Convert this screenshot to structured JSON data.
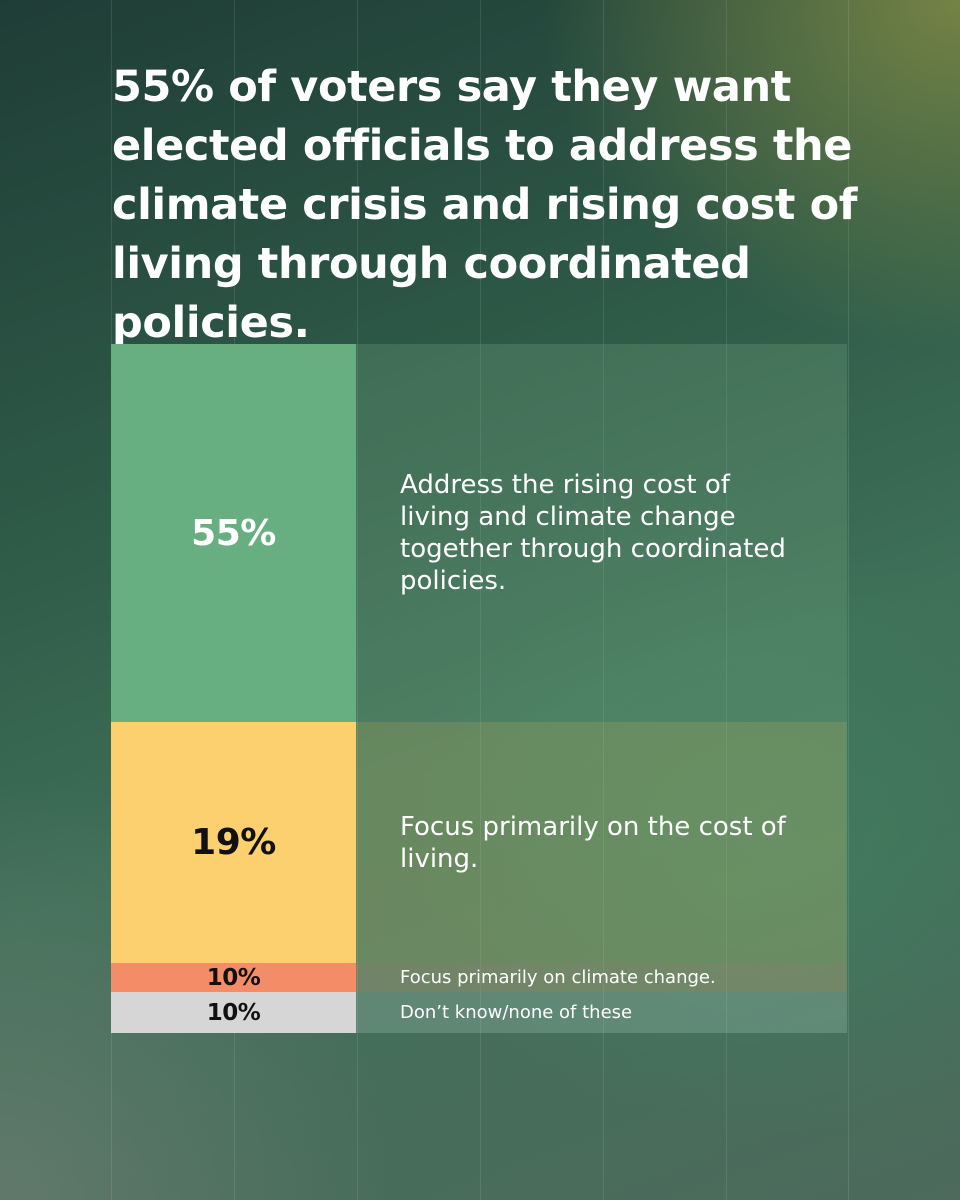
{
  "title": "55% of voters say they want elected officials to address the climate crisis and rising cost of living through coordinated policies.",
  "colors": {
    "coordinated": "#67ae81",
    "cost_of_living": "#fdd06f",
    "climate": "#f48c68",
    "dont_know": "#d6d6d6",
    "pct_text_light": "#ffffff",
    "pct_text_dark": "#111111"
  },
  "chart_data": {
    "type": "bar",
    "orientation": "stacked-rows",
    "unit": "%",
    "categories": [
      "Address the rising cost of living and climate change together through coordinated policies.",
      "Focus primarily on the cost of living.",
      "Focus primarily on climate change.",
      "Don’t know/none of these"
    ],
    "values": [
      55,
      19,
      10,
      10
    ],
    "labels": [
      "55%",
      "19%",
      "10%",
      "10%"
    ]
  }
}
